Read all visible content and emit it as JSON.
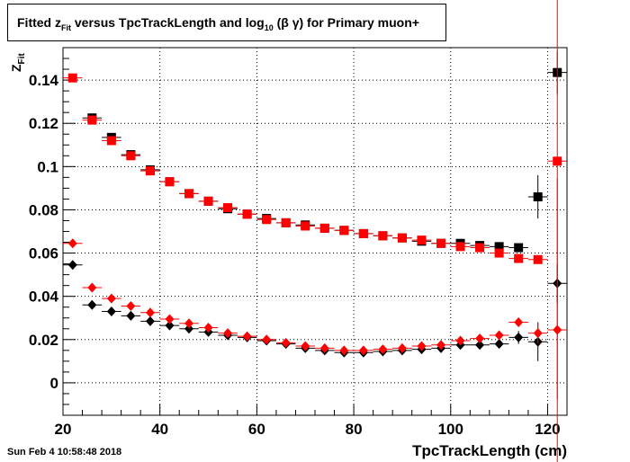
{
  "title": {
    "part1": "Fitted  z",
    "sub1": "Fit",
    "part2": " versus TpcTrackLength and log",
    "sub2": "10",
    "part3": " (β γ) for Primary muon+"
  },
  "timestamp": "Sun Feb  4 10:58:48 2018",
  "chart_data": {
    "type": "scatter",
    "title": "Fitted  zFit versus TpcTrackLength and log10 (β γ) for Primary muon+",
    "xlabel": "TpcTrackLength (cm)",
    "ylabel": "ZFit",
    "xlim": [
      20,
      124
    ],
    "ylim": [
      -0.015,
      0.155
    ],
    "x_ticks": [
      20,
      40,
      60,
      80,
      100,
      120
    ],
    "y_ticks": [
      0,
      0.02,
      0.04,
      0.06,
      0.08,
      0.1,
      0.12,
      0.14
    ],
    "y_tick_labels": [
      "0",
      "0.02",
      "0.04",
      "0.06",
      "0.08",
      "0.1",
      "0.12",
      "0.14"
    ],
    "grid": true,
    "x_bin_half_width": 2,
    "colors": {
      "black": "#000000",
      "red": "#ff0000"
    },
    "series": [
      {
        "marker": "square",
        "color": "#000000",
        "points": [
          [
            26,
            0.1225
          ],
          [
            30,
            0.1135
          ],
          [
            34,
            0.1055
          ],
          [
            38,
            0.0985
          ],
          [
            42,
            0.093
          ],
          [
            46,
            0.0875
          ],
          [
            50,
            0.084
          ],
          [
            54,
            0.0805
          ],
          [
            58,
            0.078
          ],
          [
            62,
            0.076
          ],
          [
            66,
            0.074
          ],
          [
            70,
            0.073
          ],
          [
            74,
            0.0715
          ],
          [
            78,
            0.0705
          ],
          [
            82,
            0.069
          ],
          [
            86,
            0.068
          ],
          [
            90,
            0.067
          ],
          [
            94,
            0.0655
          ],
          [
            98,
            0.0645
          ],
          [
            102,
            0.0645
          ],
          [
            106,
            0.0635
          ],
          [
            110,
            0.063
          ],
          [
            114,
            0.0625
          ],
          [
            118,
            0.086
          ],
          [
            122,
            0.1435
          ]
        ],
        "errors": [
          0,
          0,
          0,
          0,
          0,
          0,
          0,
          0,
          0,
          0,
          0,
          0,
          0,
          0,
          0,
          0,
          0,
          0,
          0,
          0,
          0,
          0,
          0.002,
          0.01,
          0.01
        ]
      },
      {
        "marker": "square",
        "color": "#ff0000",
        "points": [
          [
            22,
            0.141
          ],
          [
            26,
            0.1215
          ],
          [
            30,
            0.112
          ],
          [
            34,
            0.105
          ],
          [
            38,
            0.098
          ],
          [
            42,
            0.093
          ],
          [
            46,
            0.0875
          ],
          [
            50,
            0.084
          ],
          [
            54,
            0.081
          ],
          [
            58,
            0.078
          ],
          [
            62,
            0.0755
          ],
          [
            66,
            0.074
          ],
          [
            70,
            0.0725
          ],
          [
            74,
            0.0715
          ],
          [
            78,
            0.0705
          ],
          [
            82,
            0.069
          ],
          [
            86,
            0.068
          ],
          [
            90,
            0.067
          ],
          [
            94,
            0.066
          ],
          [
            98,
            0.0645
          ],
          [
            102,
            0.063
          ],
          [
            106,
            0.0625
          ],
          [
            110,
            0.06
          ],
          [
            114,
            0.0575
          ],
          [
            118,
            0.057
          ],
          [
            122,
            0.1025
          ]
        ],
        "errors": [
          0,
          0,
          0,
          0,
          0,
          0,
          0,
          0,
          0,
          0,
          0,
          0,
          0,
          0,
          0,
          0,
          0,
          0,
          0,
          0,
          0,
          0,
          0,
          0,
          0.002,
          0.11
        ]
      },
      {
        "marker": "diamond",
        "color": "#000000",
        "points": [
          [
            22,
            0.0545
          ],
          [
            26,
            0.036
          ],
          [
            30,
            0.033
          ],
          [
            34,
            0.031
          ],
          [
            38,
            0.0285
          ],
          [
            42,
            0.0265
          ],
          [
            46,
            0.025
          ],
          [
            50,
            0.0235
          ],
          [
            54,
            0.022
          ],
          [
            58,
            0.021
          ],
          [
            62,
            0.0195
          ],
          [
            66,
            0.018
          ],
          [
            70,
            0.016
          ],
          [
            74,
            0.015
          ],
          [
            78,
            0.014
          ],
          [
            82,
            0.014
          ],
          [
            86,
            0.0145
          ],
          [
            90,
            0.015
          ],
          [
            94,
            0.0155
          ],
          [
            98,
            0.016
          ],
          [
            102,
            0.0175
          ],
          [
            106,
            0.0175
          ],
          [
            110,
            0.018
          ],
          [
            114,
            0.021
          ],
          [
            118,
            0.019
          ],
          [
            122,
            0.046
          ]
        ],
        "errors": [
          0,
          0,
          0,
          0,
          0,
          0,
          0,
          0,
          0,
          0,
          0,
          0,
          0,
          0,
          0,
          0,
          0,
          0,
          0,
          0,
          0,
          0,
          0,
          0.003,
          0.009,
          0.009
        ]
      },
      {
        "marker": "diamond",
        "color": "#ff0000",
        "points": [
          [
            22,
            0.0645
          ],
          [
            26,
            0.044
          ],
          [
            30,
            0.039
          ],
          [
            34,
            0.0355
          ],
          [
            38,
            0.0325
          ],
          [
            42,
            0.0295
          ],
          [
            46,
            0.0275
          ],
          [
            50,
            0.0255
          ],
          [
            54,
            0.023
          ],
          [
            58,
            0.0215
          ],
          [
            62,
            0.02
          ],
          [
            66,
            0.0185
          ],
          [
            70,
            0.017
          ],
          [
            74,
            0.016
          ],
          [
            78,
            0.015
          ],
          [
            82,
            0.015
          ],
          [
            86,
            0.0155
          ],
          [
            90,
            0.016
          ],
          [
            94,
            0.017
          ],
          [
            98,
            0.0175
          ],
          [
            102,
            0.0195
          ],
          [
            106,
            0.0205
          ],
          [
            110,
            0.022
          ],
          [
            114,
            0.028
          ],
          [
            118,
            0.023
          ],
          [
            122,
            0.0245
          ]
        ],
        "errors": [
          0,
          0,
          0,
          0,
          0,
          0,
          0,
          0,
          0,
          0,
          0,
          0,
          0,
          0,
          0,
          0,
          0,
          0,
          0,
          0,
          0,
          0,
          0,
          0.002,
          0.005,
          0.07
        ]
      }
    ]
  }
}
